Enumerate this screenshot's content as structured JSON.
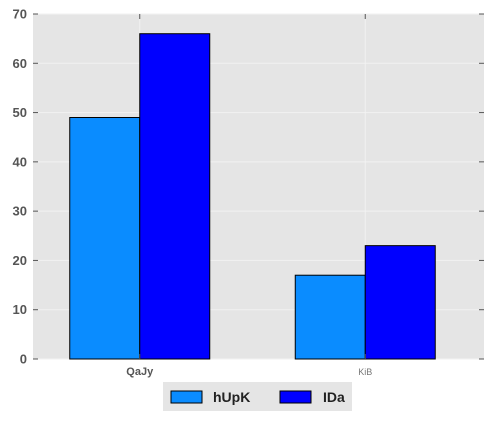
{
  "chart_data": {
    "type": "bar",
    "categories": [
      "QaJy",
      "KiB"
    ],
    "series": [
      {
        "name": "hUpK",
        "values": [
          49,
          17
        ],
        "color": "#0a8cff"
      },
      {
        "name": "IDa",
        "values": [
          66,
          23
        ],
        "color": "#0000ff"
      }
    ],
    "ylim": [
      0,
      70
    ],
    "yticks": [
      0,
      10,
      20,
      30,
      40,
      50,
      60,
      70
    ],
    "grid": true,
    "legend": "bottom-center",
    "background": "#e5e5e5",
    "grid_color": "#f2f2f2"
  }
}
